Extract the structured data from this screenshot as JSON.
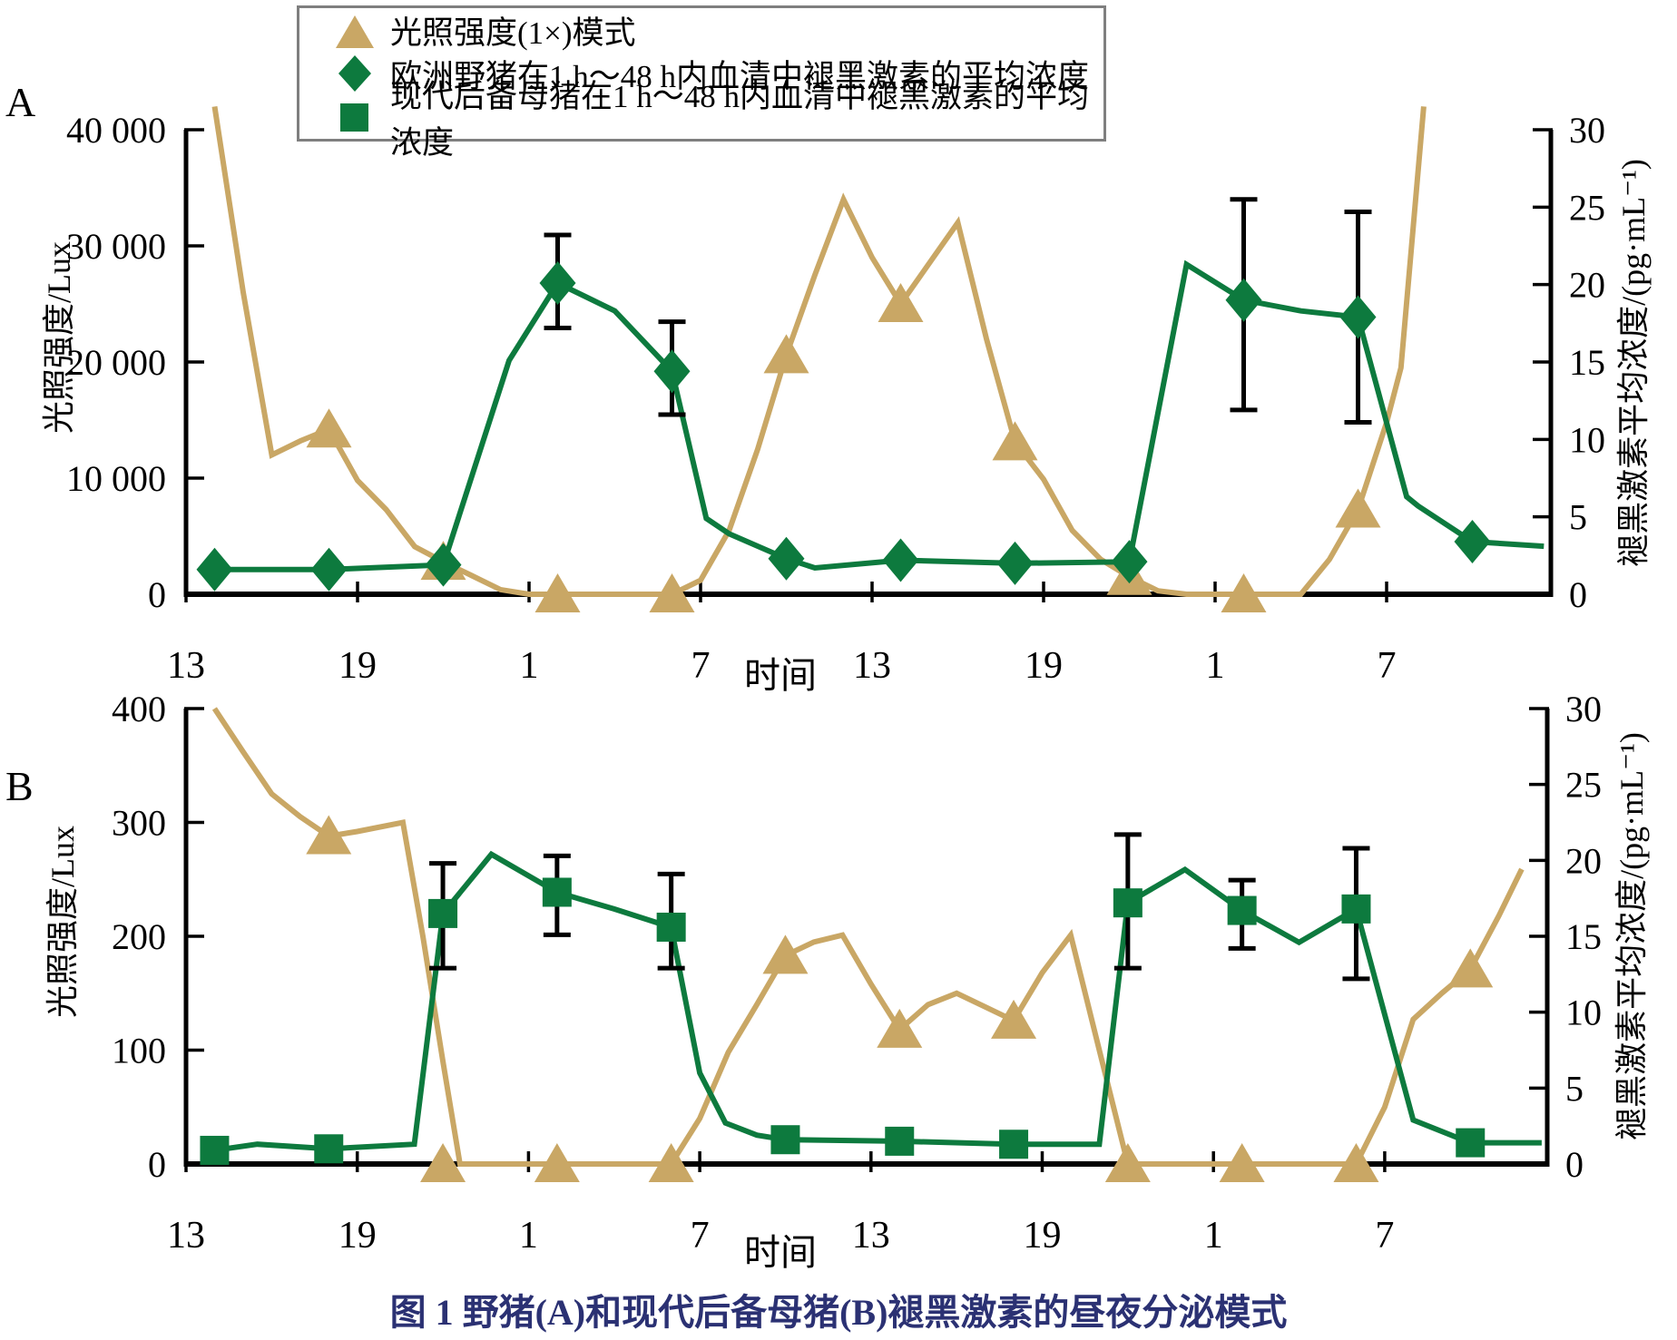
{
  "figure": {
    "panel_a_letter": "A",
    "panel_b_letter": "B",
    "caption": "图 1  野猪(A)和现代后备母猪(B)褪黑激素的昼夜分泌模式"
  },
  "colors": {
    "light": "#C9A765",
    "melatonin": "#0D7A3E",
    "axis": "#000000",
    "caption": "#2B3173",
    "legend_border": "#7F7F7F"
  },
  "legend": {
    "items": [
      {
        "marker": "triangle-icon",
        "label": "光照强度(1×)模式"
      },
      {
        "marker": "diamond-icon",
        "label": "欧洲野猪在1 h～48 h内血清中褪黑激素的平均浓度"
      },
      {
        "marker": "square-icon",
        "label": "现代后备母猪在1 h～48 h内血清中褪黑激素的平均浓度"
      }
    ]
  },
  "chart_data": [
    {
      "panel": "A",
      "type": "line",
      "subject": "欧洲野猪",
      "x_axis": {
        "title": "时间",
        "tick_hours": [
          0,
          6,
          12,
          18,
          24,
          30,
          36,
          42
        ],
        "tick_labels": [
          "13",
          "19",
          "1",
          "7",
          "13",
          "19",
          "1",
          "7"
        ]
      },
      "y_left": {
        "title": "光照强度/Lux",
        "range": [
          0,
          40000
        ],
        "ticks": [
          0,
          10000,
          20000,
          30000,
          40000
        ],
        "tick_labels": [
          "0",
          "10 000",
          "20 000",
          "30 000",
          "40 000"
        ]
      },
      "y_right": {
        "title": "褪黑激素平均浓度/(pg·mL⁻¹)",
        "range": [
          0,
          30
        ],
        "ticks": [
          0,
          5,
          10,
          15,
          20,
          25,
          30
        ],
        "tick_labels": [
          "0",
          "5",
          "10",
          "15",
          "20",
          "25",
          "30"
        ]
      },
      "series": [
        {
          "name": "光照强度(1×)模式",
          "axis": "left",
          "marker": "triangle",
          "color_key": "light",
          "line": [
            [
              1,
              42000
            ],
            [
              2,
              26000
            ],
            [
              3,
              12000
            ],
            [
              4,
              13200
            ],
            [
              5,
              14200
            ],
            [
              6,
              9800
            ],
            [
              7,
              7300
            ],
            [
              8,
              4100
            ],
            [
              9,
              2800
            ],
            [
              10,
              1600
            ],
            [
              11,
              400
            ],
            [
              12,
              0
            ],
            [
              17,
              0
            ],
            [
              18,
              1200
            ],
            [
              19,
              5500
            ],
            [
              20,
              12500
            ],
            [
              21,
              20600
            ],
            [
              22,
              27500
            ],
            [
              23,
              34000
            ],
            [
              24,
              29000
            ],
            [
              25,
              25000
            ],
            [
              26,
              28500
            ],
            [
              27,
              32000
            ],
            [
              28,
              22000
            ],
            [
              29,
              13100
            ],
            [
              30,
              9900
            ],
            [
              31,
              5500
            ],
            [
              32,
              3000
            ],
            [
              33,
              1500
            ],
            [
              34,
              300
            ],
            [
              35,
              0
            ],
            [
              39,
              0
            ],
            [
              40,
              3000
            ],
            [
              41,
              7300
            ],
            [
              42,
              14800
            ],
            [
              42.5,
              19500
            ],
            [
              43.3,
              42000
            ]
          ],
          "markers": [
            [
              5,
              14200
            ],
            [
              9,
              2800
            ],
            [
              13,
              0
            ],
            [
              17,
              0
            ],
            [
              21,
              20600
            ],
            [
              25,
              25000
            ],
            [
              29,
              13100
            ],
            [
              33,
              1500
            ],
            [
              37,
              0
            ],
            [
              41,
              7300
            ]
          ]
        },
        {
          "name": "欧洲野猪在1 h～48 h内血清中褪黑激素的平均浓度",
          "axis": "right",
          "marker": "diamond",
          "color_key": "melatonin",
          "line": [
            [
              1,
              1.6
            ],
            [
              5,
              1.6
            ],
            [
              9,
              1.9
            ],
            [
              11.3,
              15.1
            ],
            [
              13,
              20.1
            ],
            [
              15,
              18.3
            ],
            [
              17,
              14.4
            ],
            [
              18.2,
              4.9
            ],
            [
              19,
              3.9
            ],
            [
              21,
              2.3
            ],
            [
              22,
              1.7
            ],
            [
              25,
              2.2
            ],
            [
              29,
              2.0
            ],
            [
              33,
              2.1
            ],
            [
              35,
              21.3
            ],
            [
              37,
              19.0
            ],
            [
              39,
              18.3
            ],
            [
              41,
              17.9
            ],
            [
              42.7,
              6.3
            ],
            [
              43.1,
              5.7
            ],
            [
              45,
              3.4
            ],
            [
              47.5,
              3.1
            ]
          ],
          "markers": [
            [
              1,
              1.6
            ],
            [
              5,
              1.6
            ],
            [
              9,
              1.9
            ],
            [
              13,
              20.1,
              3.1,
              2.9
            ],
            [
              17,
              14.4,
              3.2,
              2.8
            ],
            [
              21,
              2.3
            ],
            [
              25,
              2.2
            ],
            [
              29,
              2.0
            ],
            [
              33,
              2.1
            ],
            [
              37,
              19.0,
              6.5,
              7.1
            ],
            [
              41,
              17.9,
              6.8,
              6.8
            ],
            [
              45,
              3.4
            ]
          ]
        }
      ]
    },
    {
      "panel": "B",
      "type": "line",
      "subject": "现代后备母猪",
      "x_axis": {
        "title": "时间",
        "tick_hours": [
          0,
          6,
          12,
          18,
          24,
          30,
          36,
          42
        ],
        "tick_labels": [
          "13",
          "19",
          "1",
          "7",
          "13",
          "19",
          "1",
          "7"
        ]
      },
      "y_left": {
        "title": "光照强度/Lux",
        "range": [
          0,
          400
        ],
        "ticks": [
          0,
          100,
          200,
          300,
          400
        ],
        "tick_labels": [
          "0",
          "100",
          "200",
          "300",
          "400"
        ]
      },
      "y_right": {
        "title": "褪黑激素平均浓度/(pg·mL⁻¹)",
        "range": [
          0,
          30
        ],
        "ticks": [
          0,
          5,
          10,
          15,
          20,
          25,
          30
        ],
        "tick_labels": [
          "0",
          "5",
          "10",
          "15",
          "20",
          "25",
          "30"
        ]
      },
      "series": [
        {
          "name": "光照强度(1×)模式",
          "axis": "left",
          "marker": "triangle",
          "color_key": "light",
          "line": [
            [
              1,
              400
            ],
            [
              2,
              362
            ],
            [
              3,
              325
            ],
            [
              4,
              305
            ],
            [
              5,
              288
            ],
            [
              6,
              292
            ],
            [
              7.6,
              300
            ],
            [
              8.3,
              200
            ],
            [
              9,
              90
            ],
            [
              9.6,
              0
            ],
            [
              17,
              0
            ],
            [
              18,
              40
            ],
            [
              19,
              98
            ],
            [
              20,
              140
            ],
            [
              21,
              183
            ],
            [
              22,
              195
            ],
            [
              23,
              201
            ],
            [
              24,
              158
            ],
            [
              25,
              118
            ],
            [
              26,
              140
            ],
            [
              27,
              150
            ],
            [
              28,
              138
            ],
            [
              29,
              126
            ],
            [
              30,
              168
            ],
            [
              31,
              201
            ],
            [
              32,
              100
            ],
            [
              33,
              0
            ],
            [
              41,
              0
            ],
            [
              42,
              50
            ],
            [
              43,
              127
            ],
            [
              44,
              150
            ],
            [
              45,
              171
            ],
            [
              46,
              218
            ],
            [
              46.8,
              259
            ]
          ],
          "markers": [
            [
              5,
              288
            ],
            [
              9,
              0
            ],
            [
              13,
              0
            ],
            [
              17,
              0
            ],
            [
              21,
              183
            ],
            [
              25,
              118
            ],
            [
              29,
              126
            ],
            [
              33,
              0
            ],
            [
              37,
              0
            ],
            [
              41,
              0
            ],
            [
              45,
              171
            ]
          ]
        },
        {
          "name": "现代后备母猪在1 h～48 h内血清中褪黑激素的平均浓度",
          "axis": "right",
          "marker": "square",
          "color_key": "melatonin",
          "line": [
            [
              1,
              0.9
            ],
            [
              2.5,
              1.3
            ],
            [
              5,
              1.0
            ],
            [
              8,
              1.3
            ],
            [
              9,
              16.5
            ],
            [
              10.7,
              20.4
            ],
            [
              13,
              17.9
            ],
            [
              15,
              16.8
            ],
            [
              17,
              15.6
            ],
            [
              18,
              6.0
            ],
            [
              18.9,
              2.7
            ],
            [
              20,
              1.9
            ],
            [
              21,
              1.6
            ],
            [
              25,
              1.5
            ],
            [
              29,
              1.3
            ],
            [
              32,
              1.3
            ],
            [
              33,
              17.2
            ],
            [
              35,
              19.4
            ],
            [
              37,
              16.7
            ],
            [
              39,
              14.6
            ],
            [
              41,
              16.8
            ],
            [
              43,
              2.9
            ],
            [
              45,
              1.4
            ],
            [
              47.5,
              1.4
            ]
          ],
          "markers": [
            [
              1,
              0.9
            ],
            [
              5,
              1.0
            ],
            [
              9,
              16.5,
              3.3,
              3.6
            ],
            [
              13,
              17.9,
              2.4,
              2.8
            ],
            [
              17,
              15.6,
              3.5,
              2.7
            ],
            [
              21,
              1.6
            ],
            [
              25,
              1.5
            ],
            [
              29,
              1.3
            ],
            [
              33,
              17.2,
              4.5,
              4.3
            ],
            [
              37,
              16.7,
              2.0,
              2.5
            ],
            [
              41,
              16.8,
              4.0,
              4.6
            ],
            [
              45,
              1.4
            ]
          ]
        }
      ]
    }
  ]
}
